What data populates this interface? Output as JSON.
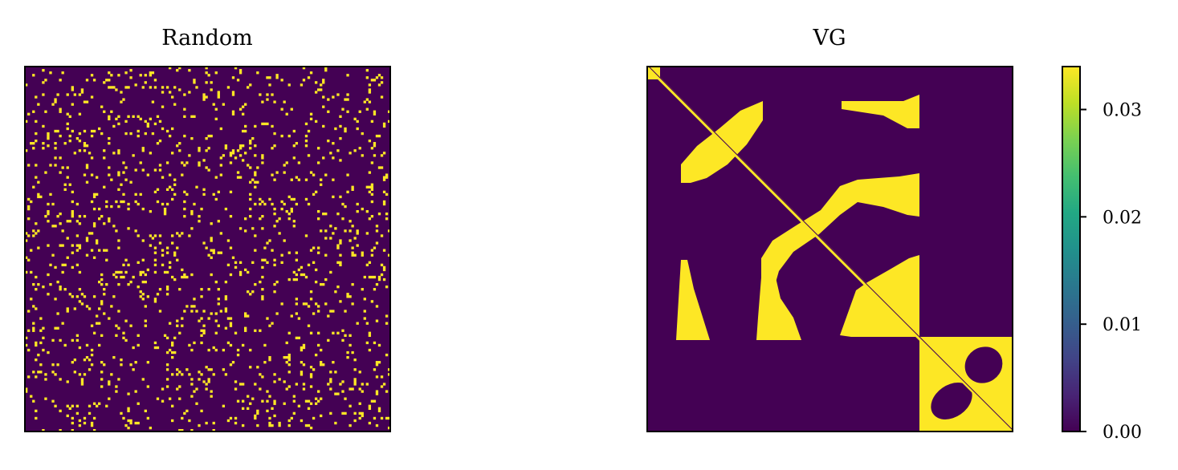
{
  "chart_data": [
    {
      "type": "heatmap",
      "title": "Random",
      "grid_size": 150,
      "xticks": [],
      "yticks": [],
      "pattern": "sparse random binary adjacency matrix",
      "fill_fraction": 0.06,
      "value_range": [
        0.0,
        0.034
      ],
      "colormap": "viridis"
    },
    {
      "type": "heatmap",
      "title": "VG",
      "grid_size": 150,
      "xticks": [],
      "yticks": [],
      "pattern": "block-structured binary adjacency matrix with filled diagonal",
      "value_range": [
        0.0,
        0.034
      ],
      "colormap": "viridis"
    }
  ],
  "colorbar": {
    "ticks": [
      0.0,
      0.01,
      0.02,
      0.03
    ],
    "tick_labels": [
      "0.00",
      "0.01",
      "0.02",
      "0.03"
    ],
    "vmin": 0.0,
    "vmax": 0.034
  },
  "colors": {
    "low": "#440154",
    "high": "#fde725"
  }
}
